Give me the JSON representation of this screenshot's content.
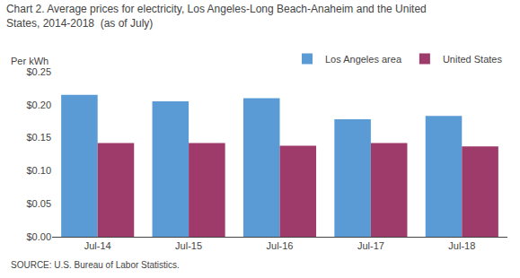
{
  "chart_data": {
    "type": "bar",
    "title": [
      "Chart 2. Average prices for electricity, Los Angeles-Long Beach-Anaheim and the United",
      "States, 2014-2018  (as of July)"
    ],
    "ylabel": "Per kWh",
    "annotations": [
      "SOURCE: U.S. Bureau of Labor Statistics."
    ],
    "categories": [
      "Jul-14",
      "Jul-15",
      "Jul-16",
      "Jul-17",
      "Jul-18"
    ],
    "series": [
      {
        "name": "Los Angeles area",
        "color": "#5B9BD5",
        "values": [
          0.215,
          0.205,
          0.21,
          0.178,
          0.183
        ]
      },
      {
        "name": "United States",
        "color": "#9E3B6A",
        "values": [
          0.142,
          0.142,
          0.138,
          0.142,
          0.137
        ]
      }
    ],
    "ylim": [
      0,
      0.25
    ],
    "yticks": [
      {
        "value": 0.0,
        "label": "$0.00"
      },
      {
        "value": 0.05,
        "label": "$0.05"
      },
      {
        "value": 0.1,
        "label": "$0.10"
      },
      {
        "value": 0.15,
        "label": "$0.15"
      },
      {
        "value": 0.2,
        "label": "$0.20"
      },
      {
        "value": 0.25,
        "label": "$0.25"
      }
    ],
    "grid": false,
    "legend": "upper right"
  }
}
